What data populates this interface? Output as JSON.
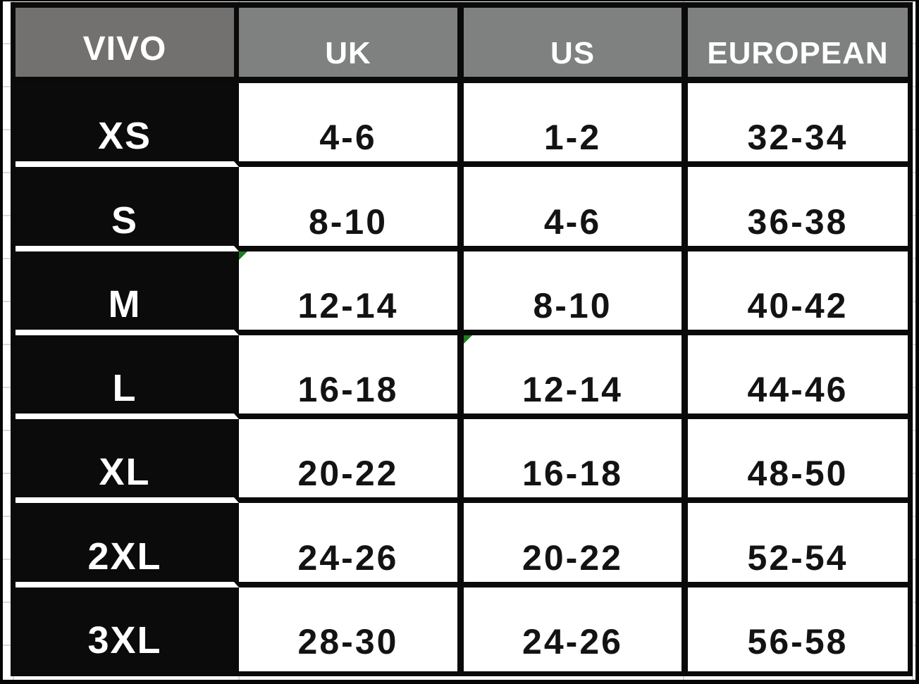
{
  "table": {
    "headers": [
      "VIVO",
      "UK",
      "US",
      "EUROPEAN"
    ],
    "rows": [
      {
        "size": "XS",
        "uk": "4-6",
        "us": "1-2",
        "eu": "32-34"
      },
      {
        "size": "S",
        "uk": "8-10",
        "us": "4-6",
        "eu": "36-38"
      },
      {
        "size": "M",
        "uk": "12-14",
        "us": "8-10",
        "eu": "40-42"
      },
      {
        "size": "L",
        "uk": "16-18",
        "us": "12-14",
        "eu": "44-46"
      },
      {
        "size": "XL",
        "uk": "20-22",
        "us": "16-18",
        "eu": "48-50"
      },
      {
        "size": "2XL",
        "uk": "24-26",
        "us": "20-22",
        "eu": "52-54"
      },
      {
        "size": "3XL",
        "uk": "28-30",
        "us": "24-26",
        "eu": "56-58"
      }
    ],
    "error_flags": [
      {
        "cell": "UK row M",
        "icon": "green-corner-flag"
      },
      {
        "cell": "US row L",
        "icon": "green-corner-flag"
      }
    ]
  },
  "colors": {
    "header_vivo_bg": "#737070",
    "header_bg": "#7f8080",
    "size_label_bg": "#0b0b0b",
    "value_cell_bg": "#ffffff",
    "table_border": "#0a0a0a",
    "sheet_gridline": "#d9d9d9",
    "flag_green": "#1c7e21"
  }
}
